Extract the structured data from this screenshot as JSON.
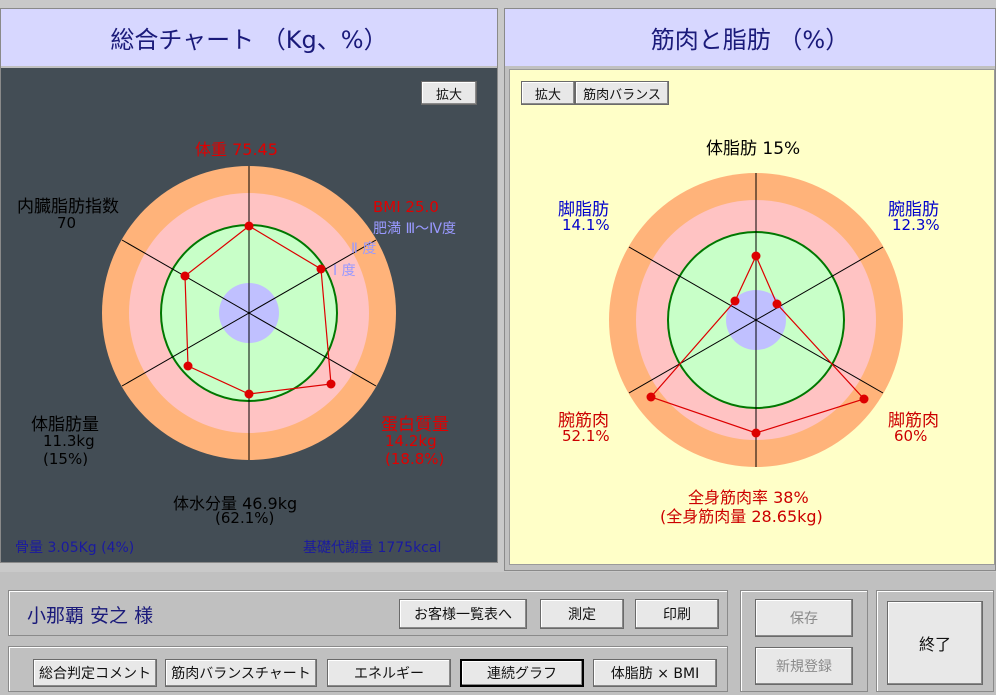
{
  "left_panel": {
    "title": "総合チャート （Kg、%）",
    "expand_button": "拡大",
    "labels": {
      "weight": "体重 75.45",
      "bmi": "BMI 25.0",
      "obese_grade": "肥満 Ⅲ～Ⅳ度",
      "grade2": "Ⅱ 度",
      "grade1": "Ⅰ 度",
      "visceral_title": "内臓脂肪指数",
      "visceral_value": "70",
      "fat_title": "体脂肪量",
      "fat_value": "11.3kg",
      "fat_pct": "(15%)",
      "protein_title": "蛋白質量",
      "protein_value": "14.2kg",
      "protein_pct": "(18.8%)",
      "water_title": "体水分量 46.9kg",
      "water_pct": "(62.1%)",
      "bone": "骨量 3.05Kg (4%)",
      "bmr": "基礎代謝量 1775kcal"
    },
    "colors": {
      "bg": "#434d55",
      "ring_outer": "#ffb37a",
      "ring_mid": "#ffc3c3",
      "ring_inner": "#c8ffc8",
      "core": "#c0c0ff",
      "series": "#dd0000",
      "label_red": "#e00000",
      "label_blue": "#9999ff"
    }
  },
  "right_panel": {
    "title": "筋肉と脂肪 （%）",
    "expand_button": "拡大",
    "balance_button": "筋肉バランス",
    "labels": {
      "body_fat": "体脂肪 15%",
      "leg_fat_title": "脚脂肪",
      "leg_fat_value": "14.1%",
      "arm_fat_title": "腕脂肪",
      "arm_fat_value": "12.3%",
      "arm_muscle_title": "腕筋肉",
      "arm_muscle_value": "52.1%",
      "leg_muscle_title": "脚筋肉",
      "leg_muscle_value": "60%",
      "muscle_rate": "全身筋肉率 38%",
      "muscle_mass": "(全身筋肉量 28.65kg)"
    },
    "colors": {
      "bg": "#ffffc8",
      "label_blue": "#0000cc",
      "label_red": "#cc0000"
    }
  },
  "customer": {
    "name": "小那覇 安之 様"
  },
  "buttons": {
    "customer_list": "お客様一覧表へ",
    "measure": "測定",
    "print": "印刷",
    "save": "保存",
    "new_register": "新規登録",
    "exit": "終了",
    "overall_comment": "総合判定コメント",
    "muscle_balance_chart": "筋肉バランスチャート",
    "energy": "エネルギー",
    "continuous_graph": "連続グラフ",
    "fat_bmi": "体脂肪 × BMI"
  }
}
